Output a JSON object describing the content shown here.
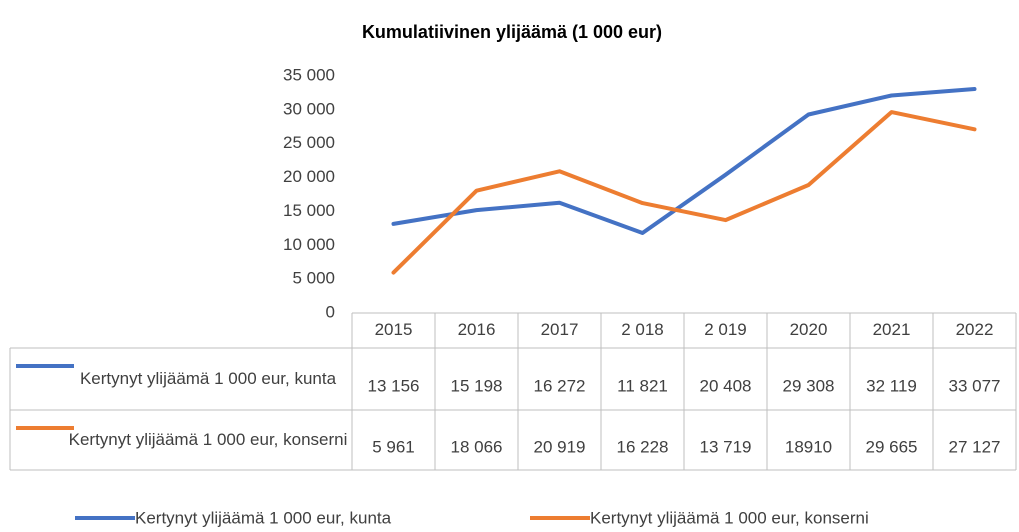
{
  "chart_data": {
    "type": "line",
    "title": "Kumulatiivinen ylijäämä (1 000 eur)",
    "categories": [
      "2015",
      "2016",
      "2017",
      "2 018",
      "2 019",
      "2020",
      "2021",
      "2022"
    ],
    "series": [
      {
        "name": "Kertynyt ylijäämä 1 000 eur, kunta",
        "color": "#4472c4",
        "values": [
          13156,
          15198,
          16272,
          11821,
          20408,
          29308,
          32119,
          33077
        ],
        "value_labels": [
          "13 156",
          "15 198",
          "16 272",
          "11 821",
          "20 408",
          "29 308",
          "32 119",
          "33 077"
        ]
      },
      {
        "name": "Kertynyt ylijäämä 1 000 eur, konserni",
        "color": "#ed7d31",
        "values": [
          5961,
          18066,
          20919,
          16228,
          13719,
          18910,
          29665,
          27127
        ],
        "value_labels": [
          "5 961",
          "18 066",
          "20 919",
          "16 228",
          "13 719",
          "18910",
          "29 665",
          "27 127"
        ]
      }
    ],
    "ylim": [
      0,
      35000
    ],
    "yticks": [
      0,
      {
        "value": 5000,
        "label": "5 000"
      },
      {
        "value": 10000,
        "label": "10 000"
      },
      {
        "value": 15000,
        "label": "15 000"
      },
      {
        "value": 20000,
        "label": "20 000"
      },
      {
        "value": 25000,
        "label": "25 000"
      },
      {
        "value": 30000,
        "label": "30 000"
      },
      {
        "value": 35000,
        "label": "35 000"
      }
    ],
    "grid": false,
    "legend": "bottom",
    "data_table": true
  }
}
